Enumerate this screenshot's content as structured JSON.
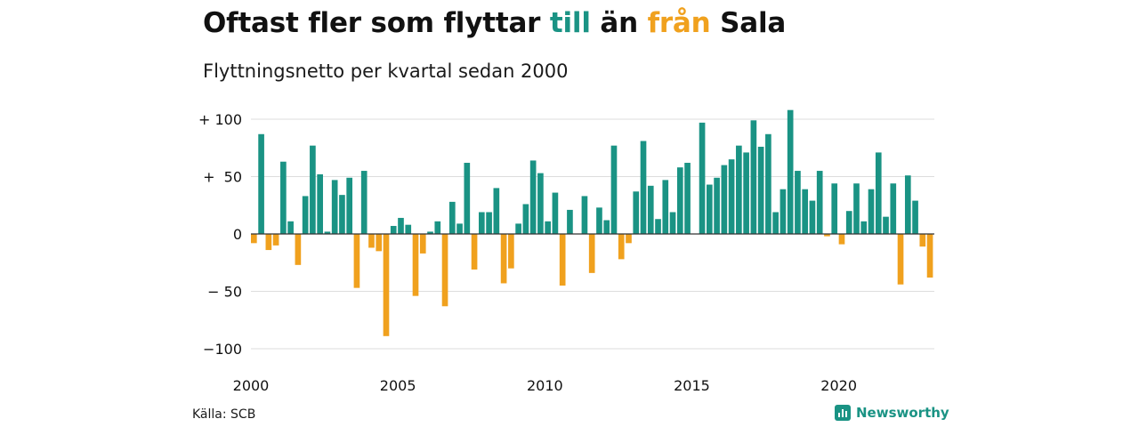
{
  "header": {
    "title_pre": "Oftast fler som flyttar ",
    "title_till": "till",
    "title_mid": " än ",
    "title_fran": "från",
    "title_post": " Sala",
    "subtitle": "Flyttningsnetto per kvartal sedan 2000"
  },
  "footer": {
    "source": "Källa: SCB",
    "brand": "Newsworthy"
  },
  "colors": {
    "positive": "#1a9384",
    "negative": "#f0a11e",
    "grid": "#dddddd",
    "zero_line": "#333333"
  },
  "chart_data": {
    "type": "bar",
    "xlabel": "",
    "ylabel": "",
    "start_year": 2000,
    "quarters_per_year": 4,
    "ylim": [
      -110,
      110
    ],
    "y_ticks": [
      100,
      50,
      0,
      -50,
      -100
    ],
    "y_tick_labels": [
      "+ 100",
      "+  50",
      "0",
      "− 50",
      "−100"
    ],
    "x_ticks": [
      2000,
      2005,
      2010,
      2015,
      2020
    ],
    "grid": true,
    "legend": "none",
    "values": [
      -8,
      87,
      -14,
      -10,
      63,
      11,
      -27,
      33,
      77,
      52,
      2,
      47,
      34,
      49,
      -47,
      55,
      -12,
      -15,
      -89,
      7,
      14,
      8,
      -54,
      -17,
      2,
      11,
      -63,
      28,
      9,
      62,
      -31,
      19,
      19,
      40,
      -43,
      -30,
      9,
      26,
      64,
      53,
      11,
      36,
      -45,
      21,
      0,
      33,
      -34,
      23,
      12,
      77,
      -22,
      -8,
      37,
      81,
      42,
      13,
      47,
      19,
      58,
      62,
      0,
      97,
      43,
      49,
      60,
      65,
      77,
      71,
      99,
      76,
      87,
      19,
      39,
      108,
      55,
      39,
      29,
      55,
      -2,
      44,
      -9,
      20,
      44,
      11,
      39,
      71,
      15,
      44,
      -44,
      51,
      29,
      -11,
      -38
    ]
  }
}
